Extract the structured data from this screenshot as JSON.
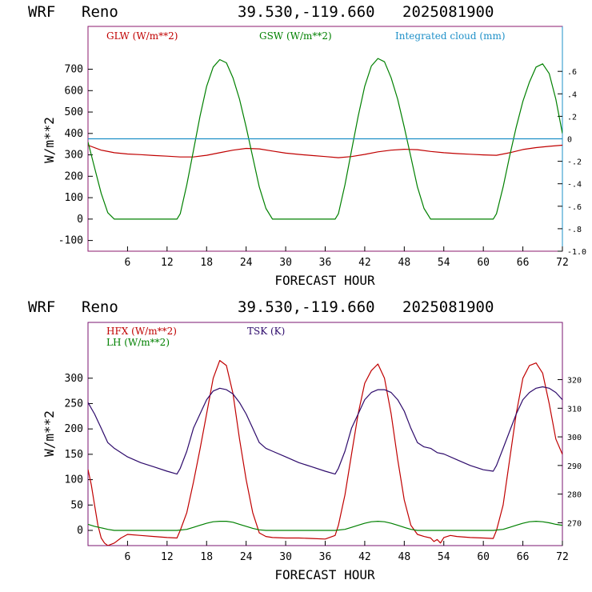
{
  "colors": {
    "red": "#c00000",
    "green": "#008000",
    "cyan": "#1e90c8",
    "purple": "#2d0a6b",
    "frame_top": "#8b1a6e",
    "frame_top_right": "#1e90c8",
    "frame_bottom": "#7a1670"
  },
  "header": {
    "model": "WRF",
    "station": "Reno",
    "coords": "39.530,-119.660",
    "run": "2025081900"
  },
  "chart_data": [
    {
      "type": "line",
      "xlabel": "FORECAST HOUR",
      "ylabel": "W/m**2",
      "xlim": [
        0,
        72
      ],
      "ylim": [
        -150,
        900
      ],
      "y2lim": [
        -1.0,
        1.0
      ],
      "x_ticks": [
        "6",
        "12",
        "18",
        "24",
        "30",
        "36",
        "42",
        "48",
        "54",
        "60",
        "66",
        "72"
      ],
      "y_ticks": [
        "-100",
        "0",
        "100",
        "200",
        "300",
        "400",
        "500",
        "600",
        "700"
      ],
      "y2_ticks": [
        ".6",
        ".4",
        ".2",
        "0",
        "-.2",
        "-.4",
        "-.6",
        "-.8",
        "-1.0"
      ],
      "legend": [
        "GLW (W/m**2)",
        "GSW (W/m**2)",
        "Integrated cloud (mm)"
      ],
      "series": [
        {
          "name": "GLW (W/m**2)",
          "color": "#c00000",
          "axis": "left",
          "x": [
            0,
            2,
            4,
            6,
            8,
            10,
            12,
            14,
            16,
            18,
            20,
            22,
            24,
            26,
            28,
            30,
            32,
            34,
            36,
            38,
            40,
            42,
            44,
            46,
            48,
            50,
            52,
            54,
            56,
            58,
            60,
            62,
            64,
            66,
            68,
            70,
            72
          ],
          "y": [
            345,
            322,
            310,
            304,
            301,
            297,
            294,
            290,
            290,
            298,
            310,
            322,
            330,
            328,
            318,
            308,
            302,
            297,
            292,
            287,
            292,
            302,
            314,
            322,
            326,
            324,
            316,
            310,
            306,
            303,
            300,
            298,
            310,
            325,
            334,
            340,
            345
          ]
        },
        {
          "name": "GSW (W/m**2)",
          "color": "#008000",
          "axis": "left",
          "x": [
            0,
            1,
            2,
            3,
            4,
            6,
            8,
            10,
            12,
            13.5,
            14,
            15,
            16,
            17,
            18,
            19,
            20,
            21,
            22,
            23,
            24,
            25,
            26,
            27,
            28,
            30,
            32,
            34,
            36,
            37.5,
            38,
            39,
            40,
            41,
            42,
            43,
            44,
            45,
            46,
            47,
            48,
            49,
            50,
            51,
            52,
            54,
            56,
            58,
            60,
            61.5,
            62,
            63,
            64,
            65,
            66,
            67,
            68,
            69,
            70,
            71,
            72
          ],
          "y": [
            360,
            240,
            120,
            30,
            0,
            0,
            0,
            0,
            0,
            0,
            25,
            160,
            320,
            480,
            620,
            710,
            745,
            730,
            660,
            560,
            430,
            290,
            150,
            50,
            0,
            0,
            0,
            0,
            0,
            0,
            25,
            160,
            320,
            480,
            620,
            715,
            750,
            735,
            660,
            560,
            430,
            290,
            150,
            50,
            0,
            0,
            0,
            0,
            0,
            0,
            25,
            150,
            295,
            430,
            550,
            640,
            710,
            725,
            680,
            560,
            400
          ]
        },
        {
          "name": "Integrated cloud (mm)",
          "color": "#1e90c8",
          "axis": "right",
          "x": [
            0,
            72
          ],
          "y": [
            0,
            0
          ]
        }
      ]
    },
    {
      "type": "line",
      "xlabel": "FORECAST HOUR",
      "ylabel": "W/m**2",
      "xlim": [
        0,
        72
      ],
      "ylim": [
        -30,
        410
      ],
      "y2lim": [
        262,
        340
      ],
      "x_ticks": [
        "6",
        "12",
        "18",
        "24",
        "30",
        "36",
        "42",
        "48",
        "54",
        "60",
        "66",
        "72"
      ],
      "y_ticks": [
        "0",
        "50",
        "100",
        "150",
        "200",
        "250",
        "300"
      ],
      "y2_ticks": [
        "270",
        "280",
        "290",
        "300",
        "310",
        "320"
      ],
      "legend": [
        "HFX (W/m**2)",
        "LH (W/m**2)",
        "TSK (K)"
      ],
      "series": [
        {
          "name": "HFX (W/m**2)",
          "color": "#c00000",
          "axis": "left",
          "x": [
            0,
            0.5,
            1,
            1.5,
            2,
            2.5,
            3,
            4,
            5,
            6,
            8,
            10,
            12,
            13.5,
            14,
            15,
            16,
            17,
            18,
            19,
            20,
            21,
            22,
            23,
            24,
            25,
            26,
            27,
            28,
            30,
            32,
            34,
            36,
            37.5,
            38,
            39,
            40,
            41,
            42,
            43,
            44,
            45,
            46,
            47,
            48,
            49,
            50,
            51,
            52,
            52.5,
            53,
            53.5,
            54,
            55,
            56,
            58,
            60,
            61.5,
            62,
            63,
            64,
            65,
            66,
            67,
            68,
            69,
            70,
            71,
            72
          ],
          "y": [
            120,
            90,
            50,
            10,
            -15,
            -25,
            -30,
            -25,
            -15,
            -8,
            -10,
            -12,
            -14,
            -15,
            0,
            35,
            95,
            160,
            230,
            300,
            335,
            325,
            270,
            180,
            100,
            35,
            -5,
            -12,
            -14,
            -15,
            -15,
            -16,
            -17,
            -10,
            10,
            70,
            150,
            230,
            290,
            315,
            328,
            300,
            230,
            140,
            60,
            10,
            -8,
            -12,
            -15,
            -22,
            -18,
            -25,
            -14,
            -10,
            -12,
            -14,
            -15,
            -16,
            0,
            50,
            140,
            230,
            300,
            325,
            330,
            310,
            250,
            180,
            150
          ]
        },
        {
          "name": "LH (W/m**2)",
          "color": "#008000",
          "axis": "left",
          "x": [
            0,
            1,
            2,
            3,
            4,
            6,
            8,
            10,
            12,
            13.5,
            15,
            16,
            17,
            18,
            19,
            20,
            21,
            22,
            23,
            24,
            25,
            26,
            27,
            28,
            30,
            32,
            34,
            36,
            37.5,
            39,
            40,
            41,
            42,
            43,
            44,
            45,
            46,
            47,
            48,
            49,
            50,
            51,
            52,
            54,
            56,
            58,
            60,
            61.5,
            63,
            64,
            65,
            66,
            67,
            68,
            69,
            70,
            71,
            72
          ],
          "y": [
            12,
            8,
            5,
            2,
            0,
            0,
            0,
            0,
            0,
            0,
            2,
            6,
            10,
            14,
            17,
            18,
            18,
            16,
            12,
            8,
            4,
            1,
            0,
            0,
            0,
            0,
            0,
            0,
            0,
            2,
            6,
            10,
            14,
            17,
            18,
            17,
            14,
            10,
            6,
            2,
            0,
            0,
            0,
            0,
            0,
            0,
            0,
            0,
            2,
            6,
            10,
            14,
            17,
            18,
            17,
            15,
            12,
            10
          ]
        },
        {
          "name": "TSK (K)",
          "color": "#2d0a6b",
          "axis": "right",
          "x": [
            0,
            1,
            2,
            3,
            4,
            6,
            8,
            10,
            12,
            13.5,
            14,
            15,
            16,
            17,
            18,
            19,
            20,
            21,
            22,
            23,
            24,
            25,
            26,
            27,
            28,
            30,
            32,
            34,
            36,
            37.5,
            38,
            39,
            40,
            41,
            42,
            43,
            44,
            45,
            46,
            47,
            48,
            49,
            50,
            51,
            52,
            53,
            54,
            56,
            58,
            60,
            61.5,
            62,
            63,
            64,
            65,
            66,
            67,
            68,
            69,
            70,
            71,
            72
          ],
          "y": [
            312,
            308,
            303,
            298,
            296,
            293,
            291,
            289.5,
            288,
            287,
            289,
            295,
            303,
            308,
            313,
            316,
            317,
            316.5,
            315,
            312,
            308,
            303,
            298,
            296,
            295,
            293,
            291,
            289.5,
            288,
            287,
            289,
            295,
            303,
            308,
            313,
            315.5,
            316.5,
            316.5,
            315.5,
            313,
            309,
            303,
            298,
            296.5,
            296,
            294.5,
            294,
            292,
            290,
            288.5,
            288,
            290,
            296,
            302,
            308,
            313,
            315.5,
            317,
            317.5,
            317,
            315.5,
            313
          ]
        }
      ]
    }
  ]
}
